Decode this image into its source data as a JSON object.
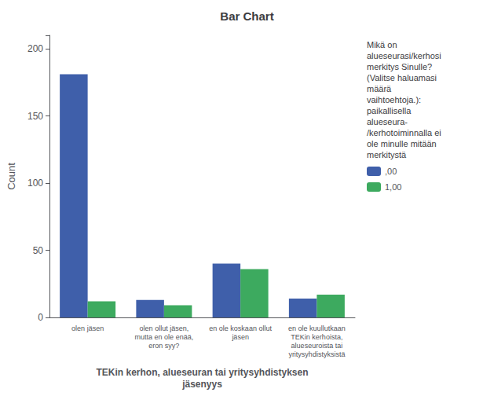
{
  "chart_data": {
    "type": "bar",
    "title": "Bar Chart",
    "xlabel": "TEKin kerhon, alueseuran tai yritysyhdistyksen\njäsenyys",
    "ylabel": "Count",
    "categories": [
      "olen jäsen",
      "olen ollut jäsen,\nmutta en ole enää,\neron syy?",
      "en ole koskaan ollut\njäsen",
      "en ole kuullutkaan\nTEKin kerhoista,\nalueseuroista tai\nyritysyhdistyksistä"
    ],
    "series": [
      {
        "name": ",00",
        "color": "#3F5FAA",
        "values": [
          181,
          13,
          40,
          14
        ]
      },
      {
        "name": "1,00",
        "color": "#3DAA5F",
        "values": [
          12,
          9,
          36,
          17
        ]
      }
    ],
    "legend_title": "Mikä on\nalueseurasi/kerhosi\nmerkitys Sinulle?\n(Valitse haluamasi\nmäärä\nvaihtoehtoja.):\npaikallisella\nalueseura-\n/kerhotoiminnalla ei\nole minulle mitään\nmerkitystä",
    "legend": "right",
    "ylim": [
      0,
      210
    ],
    "yticks": [
      0,
      50,
      100,
      150,
      200
    ],
    "grid": false
  }
}
